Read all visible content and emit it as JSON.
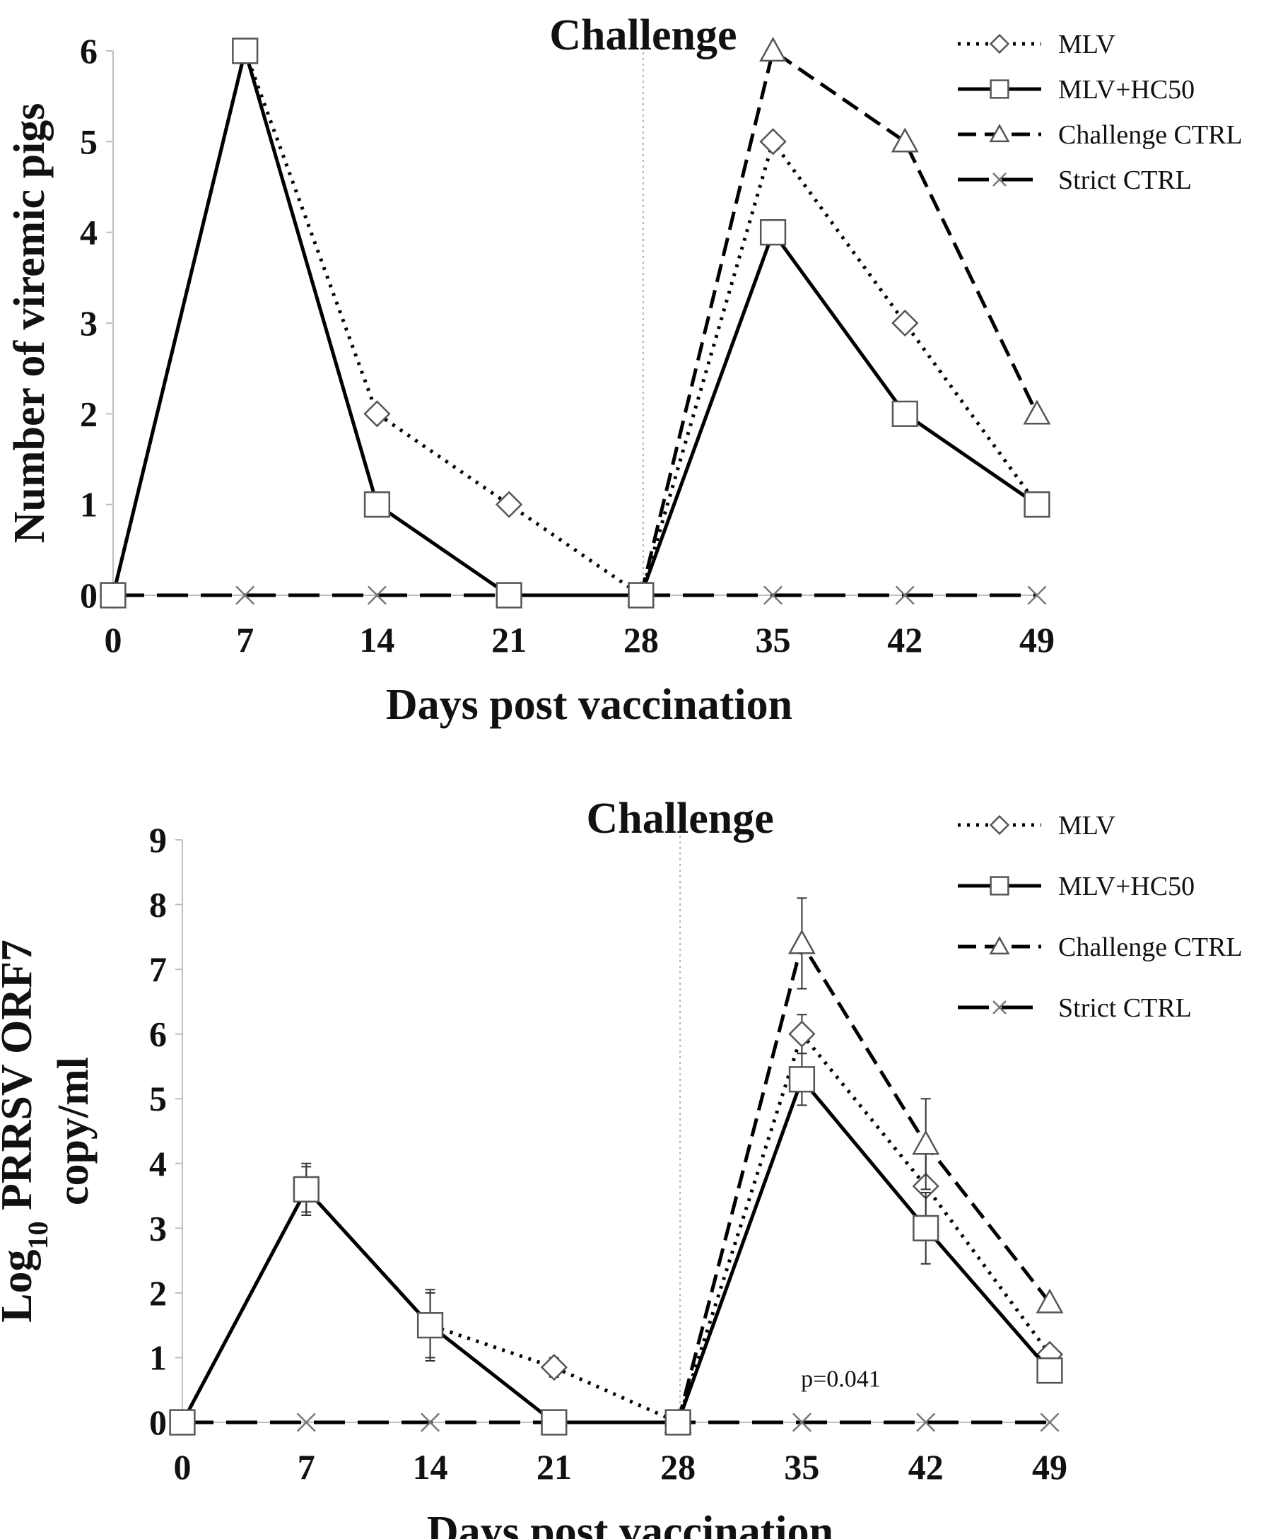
{
  "chart_data": [
    {
      "type": "line",
      "title": "",
      "annotation": "Challenge",
      "xlabel": "Days post vaccination",
      "ylabel": "Number of viremic pigs",
      "x": [
        0,
        7,
        14,
        21,
        28,
        35,
        42,
        49
      ],
      "x_ticks": [
        "0",
        "7",
        "14",
        "21",
        "28",
        "35",
        "42",
        "49"
      ],
      "y_ticks": [
        "0",
        "1",
        "2",
        "3",
        "4",
        "5",
        "6"
      ],
      "ylim": [
        0,
        6
      ],
      "challenge_day": 28,
      "legend_position": "top-right",
      "series": [
        {
          "name": "MLV",
          "marker": "diamond",
          "line": "dotted",
          "values": [
            0,
            6,
            2,
            1,
            0,
            5,
            3,
            1
          ]
        },
        {
          "name": "MLV+HC50",
          "marker": "square",
          "line": "solid",
          "values": [
            0,
            6,
            1,
            0,
            0,
            4,
            2,
            1
          ]
        },
        {
          "name": "Challenge CTRL",
          "marker": "triangle",
          "line": "dashed",
          "values": [
            null,
            null,
            null,
            null,
            0,
            6,
            5,
            2
          ]
        },
        {
          "name": "Strict CTRL",
          "marker": "cross",
          "line": "longdash",
          "values": [
            0,
            0,
            0,
            0,
            0,
            0,
            0,
            0
          ]
        }
      ]
    },
    {
      "type": "line",
      "title": "",
      "annotation": "Challenge",
      "xlabel": "Days post vaccination",
      "ylabel_line1": "Log",
      "ylabel_sub": "10",
      "ylabel_line1_rest": " PRRSV ORF7",
      "ylabel_line2": "copy/ml",
      "p_value": "p=0.041",
      "x": [
        0,
        7,
        14,
        21,
        28,
        35,
        42,
        49
      ],
      "x_ticks": [
        "0",
        "7",
        "14",
        "21",
        "28",
        "35",
        "42",
        "49"
      ],
      "y_ticks": [
        "0",
        "1",
        "2",
        "3",
        "4",
        "5",
        "6",
        "7",
        "8",
        "9"
      ],
      "ylim": [
        0,
        9
      ],
      "challenge_day": 28,
      "legend_position": "top-right",
      "series": [
        {
          "name": "MLV",
          "marker": "diamond",
          "line": "dotted",
          "values": [
            0,
            3.6,
            1.5,
            0.85,
            0,
            6.0,
            3.65,
            1.05
          ],
          "errors": [
            0,
            0.4,
            0.5,
            0.15,
            0,
            0.3,
            0.5,
            0.1
          ]
        },
        {
          "name": "MLV+HC50",
          "marker": "square",
          "line": "solid",
          "values": [
            0,
            3.6,
            1.5,
            0,
            0,
            5.3,
            3.0,
            0.8
          ],
          "errors": [
            0,
            0.35,
            0.55,
            0,
            0,
            0.4,
            0.55,
            0
          ]
        },
        {
          "name": "Challenge CTRL",
          "marker": "triangle",
          "line": "dashed",
          "values": [
            null,
            null,
            null,
            null,
            0,
            7.4,
            4.3,
            1.85
          ],
          "errors": [
            0,
            0,
            0,
            0,
            0,
            0.7,
            0.7,
            0
          ]
        },
        {
          "name": "Strict CTRL",
          "marker": "cross",
          "line": "longdash",
          "values": [
            0,
            0,
            0,
            0,
            0,
            0,
            0,
            0
          ],
          "errors": [
            0,
            0,
            0,
            0,
            0,
            0,
            0,
            0
          ]
        }
      ]
    }
  ]
}
